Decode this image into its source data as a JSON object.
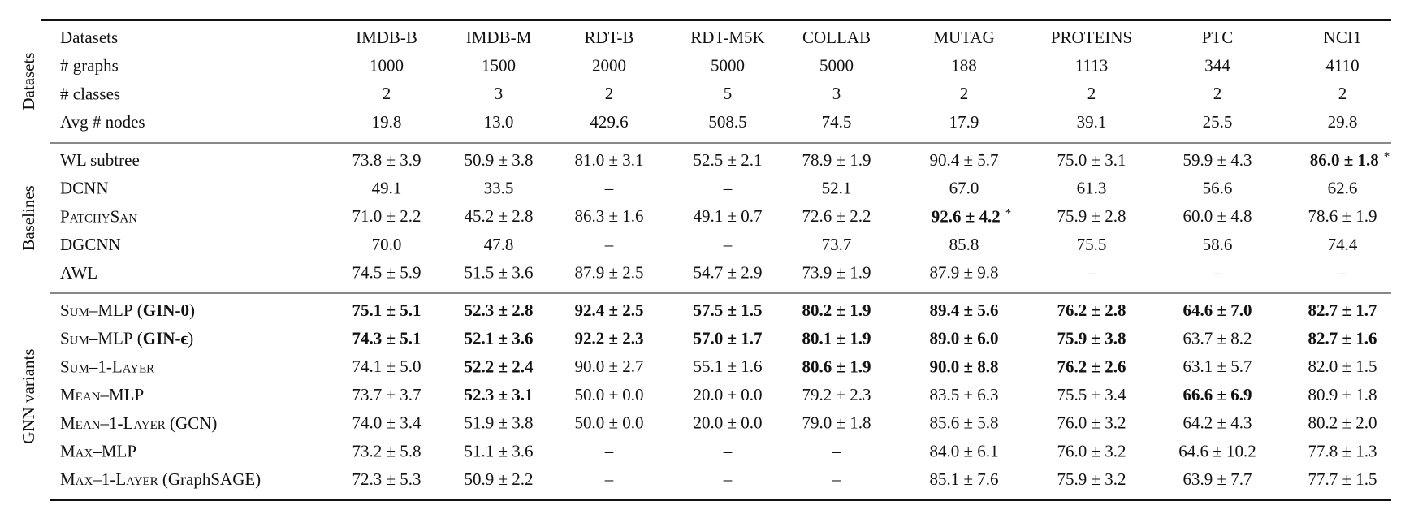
{
  "table": {
    "groups": [
      {
        "label": "Datasets",
        "rows": [
          {
            "label": [
              {
                "text": "Datasets"
              }
            ],
            "cells": [
              "IMDB-B",
              "IMDB-M",
              "RDT-B",
              "RDT-M5K",
              "COLLAB",
              "MUTAG",
              "PROTEINS",
              "PTC",
              "NCI1"
            ]
          },
          {
            "label": [
              {
                "text": "# graphs"
              }
            ],
            "cells": [
              "1000",
              "1500",
              "2000",
              "5000",
              "5000",
              "188",
              "1113",
              "344",
              "4110"
            ]
          },
          {
            "label": [
              {
                "text": "# classes"
              }
            ],
            "cells": [
              "2",
              "3",
              "2",
              "5",
              "3",
              "2",
              "2",
              "2",
              "2"
            ]
          },
          {
            "label": [
              {
                "text": "Avg # nodes"
              }
            ],
            "cells": [
              "19.8",
              "13.0",
              "429.6",
              "508.5",
              "74.5",
              "17.9",
              "39.1",
              "25.5",
              "29.8"
            ]
          }
        ]
      },
      {
        "label": "Baselines",
        "rows": [
          {
            "label": [
              {
                "text": "WL subtree"
              }
            ],
            "cells": [
              "73.8 ± 3.9",
              "50.9 ± 3.8",
              "81.0 ± 3.1",
              "52.5 ± 2.1",
              "78.9 ± 1.9",
              "90.4 ± 5.7",
              "75.0 ± 3.1",
              "59.9 ± 4.3",
              {
                "text": "86.0 ± 1.8",
                "bold": true,
                "note": "*"
              }
            ]
          },
          {
            "label": [
              {
                "text": "DCNN"
              }
            ],
            "cells": [
              "49.1",
              "33.5",
              "–",
              "–",
              "52.1",
              "67.0",
              "61.3",
              "56.6",
              "62.6"
            ]
          },
          {
            "label": [
              {
                "text": "PatchySan",
                "style": "smallcaps"
              }
            ],
            "cells": [
              "71.0 ± 2.2",
              "45.2 ± 2.8",
              "86.3 ± 1.6",
              "49.1 ± 0.7",
              "72.6 ± 2.2",
              {
                "text": "92.6 ± 4.2",
                "bold": true,
                "note": "*"
              },
              "75.9 ± 2.8",
              "60.0 ± 4.8",
              "78.6 ± 1.9"
            ]
          },
          {
            "label": [
              {
                "text": "DGCNN"
              }
            ],
            "cells": [
              "70.0",
              "47.8",
              "–",
              "–",
              "73.7",
              "85.8",
              "75.5",
              "58.6",
              "74.4"
            ]
          },
          {
            "label": [
              {
                "text": "AWL"
              }
            ],
            "cells": [
              "74.5 ± 5.9",
              "51.5 ± 3.6",
              "87.9 ± 2.5",
              "54.7 ± 2.9",
              "73.9 ± 1.9",
              "87.9 ± 9.8",
              "–",
              "–",
              "–"
            ]
          }
        ]
      },
      {
        "label": "GNN variants",
        "rows": [
          {
            "label": [
              {
                "text": "Sum–MLP",
                "style": "smallcaps"
              },
              {
                "text": " ("
              },
              {
                "text": "GIN-0",
                "style": "bold"
              },
              {
                "text": ")"
              }
            ],
            "cells": [
              {
                "text": "75.1 ± 5.1",
                "bold": true
              },
              {
                "text": "52.3 ± 2.8",
                "bold": true
              },
              {
                "text": "92.4 ± 2.5",
                "bold": true
              },
              {
                "text": "57.5 ± 1.5",
                "bold": true
              },
              {
                "text": "80.2 ± 1.9",
                "bold": true
              },
              {
                "text": "89.4 ± 5.6",
                "bold": true
              },
              {
                "text": "76.2 ± 2.8",
                "bold": true
              },
              {
                "text": "64.6 ± 7.0",
                "bold": true
              },
              {
                "text": "82.7 ± 1.7",
                "bold": true
              }
            ]
          },
          {
            "label": [
              {
                "text": "Sum–MLP",
                "style": "smallcaps"
              },
              {
                "text": " ("
              },
              {
                "text": "GIN-ϵ",
                "style": "bold"
              },
              {
                "text": ")"
              }
            ],
            "cells": [
              {
                "text": "74.3 ± 5.1",
                "bold": true
              },
              {
                "text": "52.1 ± 3.6",
                "bold": true
              },
              {
                "text": "92.2 ± 2.3",
                "bold": true
              },
              {
                "text": "57.0 ± 1.7",
                "bold": true
              },
              {
                "text": "80.1 ± 1.9",
                "bold": true
              },
              {
                "text": "89.0 ± 6.0",
                "bold": true
              },
              {
                "text": "75.9 ± 3.8",
                "bold": true
              },
              "63.7 ± 8.2",
              {
                "text": "82.7 ± 1.6",
                "bold": true
              }
            ]
          },
          {
            "label": [
              {
                "text": "Sum–1-Layer",
                "style": "smallcaps"
              }
            ],
            "cells": [
              "74.1 ± 5.0",
              {
                "text": "52.2 ± 2.4",
                "bold": true
              },
              "90.0 ± 2.7",
              "55.1 ± 1.6",
              {
                "text": "80.6 ± 1.9",
                "bold": true
              },
              {
                "text": "90.0 ± 8.8",
                "bold": true
              },
              {
                "text": "76.2 ± 2.6",
                "bold": true
              },
              "63.1 ± 5.7",
              "82.0 ± 1.5"
            ]
          },
          {
            "label": [
              {
                "text": "Mean–MLP",
                "style": "smallcaps"
              }
            ],
            "cells": [
              "73.7 ± 3.7",
              {
                "text": "52.3 ± 3.1",
                "bold": true
              },
              "50.0 ± 0.0",
              "20.0 ± 0.0",
              "79.2 ± 2.3",
              "83.5 ± 6.3",
              "75.5 ± 3.4",
              {
                "text": "66.6 ± 6.9",
                "bold": true
              },
              "80.9 ± 1.8"
            ]
          },
          {
            "label": [
              {
                "text": "Mean–1-Layer",
                "style": "smallcaps"
              },
              {
                "text": " (GCN)"
              }
            ],
            "cells": [
              "74.0 ± 3.4",
              "51.9 ± 3.8",
              "50.0 ± 0.0",
              "20.0 ± 0.0",
              "79.0 ± 1.8",
              "85.6 ± 5.8",
              "76.0 ± 3.2",
              "64.2 ± 4.3",
              "80.2 ± 2.0"
            ]
          },
          {
            "label": [
              {
                "text": "Max–MLP",
                "style": "smallcaps"
              }
            ],
            "cells": [
              "73.2 ± 5.8",
              "51.1 ± 3.6",
              "–",
              "–",
              "–",
              "84.0 ± 6.1",
              "76.0 ± 3.2",
              "64.6 ± 10.2",
              "77.8 ± 1.3"
            ]
          },
          {
            "label": [
              {
                "text": "Max–1-Layer",
                "style": "smallcaps"
              },
              {
                "text": " (GraphSAGE)"
              }
            ],
            "cells": [
              "72.3 ± 5.3",
              "50.9 ± 2.2",
              "–",
              "–",
              "–",
              "85.1 ± 7.6",
              "75.9 ± 3.2",
              "63.9 ± 7.7",
              "77.7 ± 1.5"
            ]
          }
        ]
      }
    ]
  }
}
